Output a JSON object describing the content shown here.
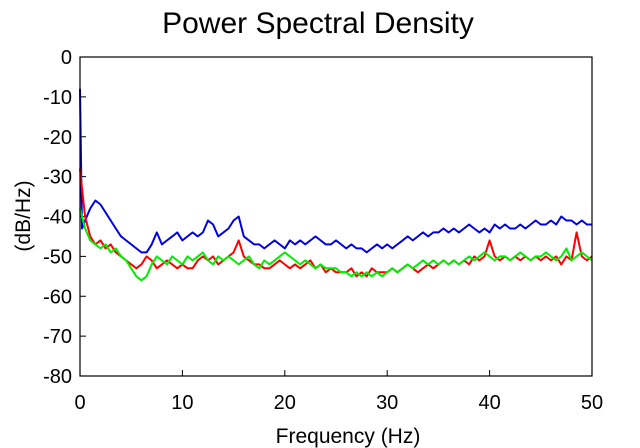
{
  "chart_data": {
    "type": "line",
    "title": "Power Spectral Density",
    "xlabel": "Frequency (Hz)",
    "ylabel": "(dB/Hz)",
    "xlim": [
      0,
      50
    ],
    "ylim": [
      -80,
      0
    ],
    "xticks": [
      0,
      10,
      20,
      30,
      40,
      50
    ],
    "yticks": [
      0,
      -10,
      -20,
      -30,
      -40,
      -50,
      -60,
      -70,
      -80
    ],
    "grid": false,
    "legend": "none",
    "series": [
      {
        "color": "#0000e6",
        "x": [
          0,
          0.2,
          0.5,
          1,
          1.5,
          2,
          2.5,
          3,
          3.5,
          4,
          4.5,
          5,
          5.5,
          6,
          6.5,
          7,
          7.5,
          8,
          8.5,
          9,
          9.5,
          10,
          10.5,
          11,
          11.5,
          12,
          12.5,
          13,
          13.5,
          14,
          14.5,
          15,
          15.5,
          16,
          16.5,
          17,
          17.5,
          18,
          18.5,
          19,
          19.5,
          20,
          20.5,
          21,
          21.5,
          22,
          22.5,
          23,
          23.5,
          24,
          24.5,
          25,
          25.5,
          26,
          26.5,
          27,
          27.5,
          28,
          28.5,
          29,
          29.5,
          30,
          30.5,
          31,
          31.5,
          32,
          32.5,
          33,
          33.5,
          34,
          34.5,
          35,
          35.5,
          36,
          36.5,
          37,
          37.5,
          38,
          38.5,
          39,
          39.5,
          40,
          40.5,
          41,
          41.5,
          42,
          42.5,
          43,
          43.5,
          44,
          44.5,
          45,
          45.5,
          46,
          46.5,
          47,
          47.5,
          48,
          48.5,
          49,
          49.5,
          50
        ],
        "y": [
          -8,
          -43,
          -41,
          -38,
          -36,
          -37,
          -39,
          -41,
          -43,
          -45,
          -46,
          -47,
          -48,
          -49,
          -49,
          -47,
          -44,
          -47,
          -46,
          -45,
          -44,
          -46,
          -45,
          -44,
          -45,
          -44,
          -41,
          -42,
          -45,
          -44,
          -43,
          -41,
          -40,
          -45,
          -46,
          -47,
          -47,
          -48,
          -47,
          -46,
          -47,
          -48,
          -46,
          -47,
          -46,
          -47,
          -46,
          -45,
          -46,
          -47,
          -47,
          -46,
          -47,
          -48,
          -47,
          -48,
          -48,
          -49,
          -48,
          -47,
          -48,
          -47,
          -48,
          -47,
          -46,
          -45,
          -46,
          -45,
          -44,
          -45,
          -44,
          -44,
          -43,
          -44,
          -43,
          -44,
          -43,
          -42,
          -43,
          -44,
          -43,
          -44,
          -42,
          -43,
          -42,
          -43,
          -43,
          -42,
          -43,
          -42,
          -41,
          -42,
          -42,
          -41,
          -42,
          -40,
          -41,
          -41,
          -42,
          -41,
          -42,
          -42
        ],
        "y_note_removed": true
      },
      {
        "color": "#ff0000",
        "x": [
          0,
          0.2,
          0.5,
          1,
          1.5,
          2,
          2.5,
          3,
          3.5,
          4,
          4.5,
          5,
          5.5,
          6,
          6.5,
          7,
          7.5,
          8,
          8.5,
          9,
          9.5,
          10,
          10.5,
          11,
          11.5,
          12,
          12.5,
          13,
          13.5,
          14,
          14.5,
          15,
          15.5,
          16,
          16.5,
          17,
          17.5,
          18,
          18.5,
          19,
          19.5,
          20,
          20.5,
          21,
          21.5,
          22,
          22.5,
          23,
          23.5,
          24,
          24.5,
          25,
          25.5,
          26,
          26.5,
          27,
          27.5,
          28,
          28.5,
          29,
          29.5,
          30,
          30.5,
          31,
          31.5,
          32,
          32.5,
          33,
          33.5,
          34,
          34.5,
          35,
          35.5,
          36,
          36.5,
          37,
          37.5,
          38,
          38.5,
          39,
          39.5,
          40,
          40.5,
          41,
          41.5,
          42,
          42.5,
          43,
          43.5,
          44,
          44.5,
          45,
          45.5,
          46,
          46.5,
          47,
          47.5,
          48,
          48.5,
          49,
          49.5,
          50
        ],
        "y": [
          -28,
          -33,
          -40,
          -45,
          -47,
          -46,
          -48,
          -47,
          -49,
          -50,
          -51,
          -52,
          -53,
          -52,
          -50,
          -51,
          -53,
          -52,
          -51,
          -52,
          -53,
          -52,
          -53,
          -53,
          -51,
          -50,
          -51,
          -50,
          -52,
          -51,
          -50,
          -49,
          -46,
          -50,
          -51,
          -52,
          -52,
          -53,
          -53,
          -52,
          -51,
          -52,
          -53,
          -52,
          -53,
          -52,
          -51,
          -53,
          -52,
          -54,
          -53,
          -54,
          -54,
          -54,
          -53,
          -55,
          -54,
          -55,
          -53,
          -54,
          -54,
          -54,
          -53,
          -54,
          -53,
          -52,
          -53,
          -54,
          -53,
          -52,
          -53,
          -52,
          -51,
          -52,
          -51,
          -52,
          -51,
          -52,
          -50,
          -51,
          -50,
          -46,
          -50,
          -51,
          -50,
          -51,
          -50,
          -51,
          -50,
          -51,
          -50,
          -51,
          -50,
          -51,
          -50,
          -52,
          -50,
          -51,
          -44,
          -50,
          -51,
          -50
        ],
        "y_note_removed": true
      },
      {
        "color": "#00ee00",
        "x": [
          0,
          0.2,
          0.5,
          1,
          1.5,
          2,
          2.5,
          3,
          3.5,
          4,
          4.5,
          5,
          5.5,
          6,
          6.5,
          7,
          7.5,
          8,
          8.5,
          9,
          9.5,
          10,
          10.5,
          11,
          11.5,
          12,
          12.5,
          13,
          13.5,
          14,
          14.5,
          15,
          15.5,
          16,
          16.5,
          17,
          17.5,
          18,
          18.5,
          19,
          19.5,
          20,
          20.5,
          21,
          21.5,
          22,
          22.5,
          23,
          23.5,
          24,
          24.5,
          25,
          25.5,
          26,
          26.5,
          27,
          27.5,
          28,
          28.5,
          29,
          29.5,
          30,
          30.5,
          31,
          31.5,
          32,
          32.5,
          33,
          33.5,
          34,
          34.5,
          35,
          35.5,
          36,
          36.5,
          37,
          37.5,
          38,
          38.5,
          39,
          39.5,
          40,
          40.5,
          41,
          41.5,
          42,
          42.5,
          43,
          43.5,
          44,
          44.5,
          45,
          45.5,
          46,
          46.5,
          47,
          47.5,
          48,
          48.5,
          49,
          49.5,
          50
        ],
        "y": [
          -38,
          -40,
          -43,
          -46,
          -47,
          -48,
          -47,
          -49,
          -48,
          -50,
          -51,
          -53,
          -55,
          -56,
          -55,
          -52,
          -50,
          -51,
          -52,
          -50,
          -51,
          -52,
          -50,
          -51,
          -50,
          -49,
          -51,
          -52,
          -50,
          -51,
          -50,
          -51,
          -52,
          -51,
          -50,
          -52,
          -53,
          -51,
          -52,
          -51,
          -50,
          -49,
          -50,
          -51,
          -52,
          -51,
          -52,
          -53,
          -52,
          -53,
          -53,
          -53,
          -54,
          -54,
          -55,
          -54,
          -55,
          -54,
          -55,
          -54,
          -55,
          -54,
          -53,
          -54,
          -53,
          -52,
          -53,
          -52,
          -51,
          -52,
          -51,
          -52,
          -51,
          -52,
          -51,
          -52,
          -51,
          -50,
          -51,
          -50,
          -49,
          -50,
          -51,
          -50,
          -50,
          -51,
          -50,
          -49,
          -50,
          -51,
          -50,
          -50,
          -49,
          -50,
          -51,
          -50,
          -48,
          -51,
          -50,
          -49,
          -50,
          -51
        ],
        "y_note_removed": true
      }
    ]
  }
}
